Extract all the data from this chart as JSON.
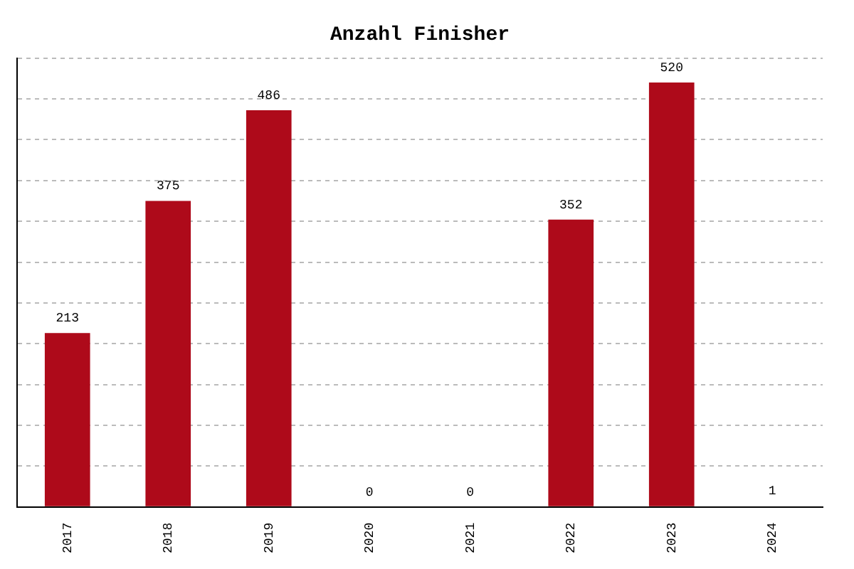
{
  "chart_data": {
    "type": "bar",
    "title": "Anzahl Finisher",
    "categories": [
      "2017",
      "2018",
      "2019",
      "2020",
      "2021",
      "2022",
      "2023",
      "2024"
    ],
    "values": [
      213,
      375,
      486,
      0,
      0,
      352,
      520,
      1
    ],
    "color": "#ae0a1a",
    "data_labels": true,
    "ylim": [
      0,
      550
    ],
    "yticks": [
      {
        "value": 0,
        "label": null
      },
      {
        "value": 50,
        "label": null
      },
      {
        "value": 100,
        "label": null
      },
      {
        "value": 150,
        "label": null
      },
      {
        "value": 200,
        "label": null
      },
      {
        "value": 250,
        "label": null
      },
      {
        "value": 300,
        "label": null
      },
      {
        "value": 350,
        "label": null
      },
      {
        "value": 400,
        "label": null
      },
      {
        "value": 450,
        "label": null
      },
      {
        "value": 500,
        "label": null
      },
      {
        "value": 550,
        "label": null
      }
    ],
    "grid": "y",
    "tick_labels": "x",
    "legend": false
  }
}
